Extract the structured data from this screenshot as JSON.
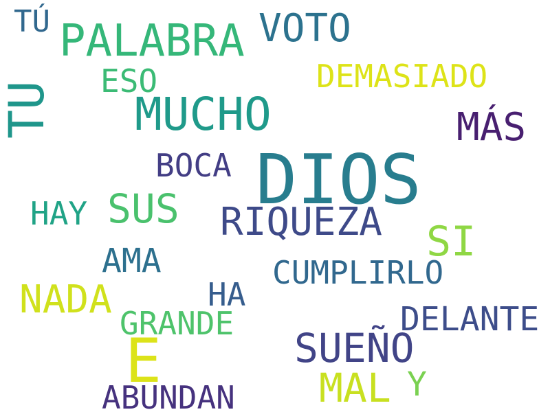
{
  "words": [
    {
      "text": "TÚ",
      "color": "#31688e"
    },
    {
      "text": "PALABRA",
      "color": "#35b779"
    },
    {
      "text": "VOTO",
      "color": "#2c728e"
    },
    {
      "text": "TU",
      "color": "#1f968b"
    },
    {
      "text": "ESO",
      "color": "#3bbb75"
    },
    {
      "text": "DEMASIADO",
      "color": "#dde318"
    },
    {
      "text": "MUCHO",
      "color": "#1f9a8a"
    },
    {
      "text": "MÁS",
      "color": "#481f70"
    },
    {
      "text": "DIOS",
      "color": "#287d8e"
    },
    {
      "text": "BOCA",
      "color": "#433e85"
    },
    {
      "text": "HAY",
      "color": "#20a386"
    },
    {
      "text": "SUS",
      "color": "#4ac16d"
    },
    {
      "text": "RIQUEZA",
      "color": "#3e4a89"
    },
    {
      "text": "SI",
      "color": "#8fd744"
    },
    {
      "text": "AMA",
      "color": "#2d708e"
    },
    {
      "text": "CUMPLIRLO",
      "color": "#31688e"
    },
    {
      "text": "NADA",
      "color": "#d0e11c"
    },
    {
      "text": "HA",
      "color": "#365d8d"
    },
    {
      "text": "GRANDE",
      "color": "#4ec36b"
    },
    {
      "text": "DELANTE",
      "color": "#3d4d8a"
    },
    {
      "text": "SUEÑO",
      "color": "#414487"
    },
    {
      "text": "E",
      "color": "#dce319"
    },
    {
      "text": "MAL",
      "color": "#c8e020"
    },
    {
      "text": "Y",
      "color": "#7ad151"
    },
    {
      "text": "ABUNDAN",
      "color": "#46327e"
    }
  ]
}
